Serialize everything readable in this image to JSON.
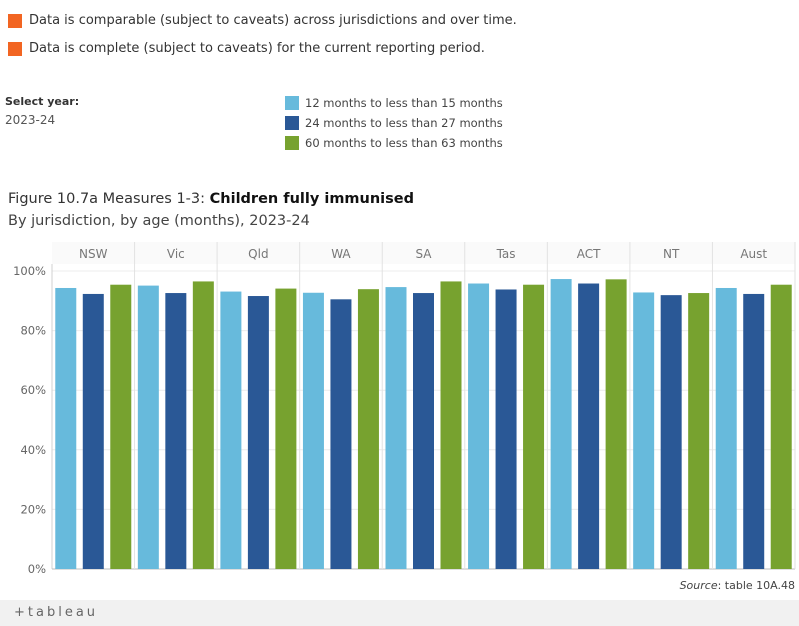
{
  "notes": [
    {
      "text": "Data is comparable (subject to caveats) across jurisdictions and over time.",
      "color": "#F26522"
    },
    {
      "text": "Data is complete (subject to caveats) for the current reporting period.",
      "color": "#F26522"
    }
  ],
  "filter": {
    "label": "Select year:",
    "value": "2023-24"
  },
  "title": {
    "prefix": "Figure 10.7a Measures 1-3: ",
    "main": "Children fully immunised"
  },
  "subtitle": "By jurisdiction, by age (months), 2023-24",
  "source": {
    "label": "Source",
    "text": ": table 10A.48"
  },
  "footer": {
    "brand": "+tableau"
  },
  "chart_data": {
    "type": "bar",
    "categories": [
      "NSW",
      "Vic",
      "Qld",
      "WA",
      "SA",
      "Tas",
      "ACT",
      "NT",
      "Aust"
    ],
    "series": [
      {
        "name": "12 months to less than 15 months",
        "color": "#67BADC",
        "values": [
          94.3,
          95.1,
          93.1,
          92.7,
          94.6,
          95.8,
          97.3,
          92.8,
          94.3
        ]
      },
      {
        "name": "24 months to less than 27 months",
        "color": "#2A5896",
        "values": [
          92.3,
          92.6,
          91.6,
          90.5,
          92.6,
          93.8,
          95.8,
          91.9,
          92.3
        ]
      },
      {
        "name": "60 months to less than 63 months",
        "color": "#77A22F",
        "values": [
          95.4,
          96.5,
          94.1,
          93.9,
          96.5,
          95.4,
          97.2,
          92.6,
          95.4
        ]
      }
    ],
    "yticks": [
      "0%",
      "20%",
      "40%",
      "60%",
      "80%",
      "100%"
    ],
    "ylim": [
      0,
      100
    ],
    "grid": true
  }
}
